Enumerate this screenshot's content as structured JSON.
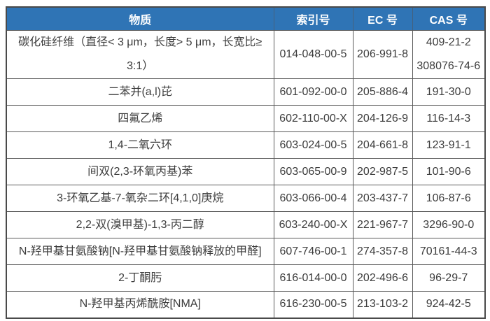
{
  "colors": {
    "header_background": "#2f74b5",
    "header_text": "#ffffff",
    "grid_border": "#5a5a5a",
    "outer_border": "#4a4a4a",
    "cell_text": "#3c3c3c",
    "page_background": "#ffffff"
  },
  "table": {
    "columns": [
      {
        "key": "substance",
        "label": "物质"
      },
      {
        "key": "index_no",
        "label": "索引号"
      },
      {
        "key": "ec_no",
        "label": "EC 号"
      },
      {
        "key": "cas_no",
        "label": "CAS 号"
      }
    ],
    "rows": [
      {
        "substance": "碳化硅纤维（直径< 3 μm，长度> 5 μm，长宽比≥ 3:1）",
        "index_no": "014-048-00-5",
        "ec_no": "206-991-8",
        "cas_no": [
          "409-21-2",
          "308076-74-6"
        ]
      },
      {
        "substance": "二苯并(a,l)芘",
        "index_no": "601-092-00-0",
        "ec_no": "205-886-4",
        "cas_no": "191-30-0"
      },
      {
        "substance": "四氟乙烯",
        "index_no": "602-110-00-X",
        "ec_no": "204-126-9",
        "cas_no": "116-14-3"
      },
      {
        "substance": "1,4-二氧六环",
        "index_no": "603-024-00-5",
        "ec_no": "204-661-8",
        "cas_no": "123-91-1"
      },
      {
        "substance": "间双(2,3-环氧丙基)苯",
        "index_no": "603-065-00-9",
        "ec_no": "202-987-5",
        "cas_no": "101-90-6"
      },
      {
        "substance": "3-环氧乙基-7-氧杂二环[4,1,0]庚烷",
        "index_no": "603-066-00-4",
        "ec_no": "203-437-7",
        "cas_no": "106-87-6"
      },
      {
        "substance": "2,2-双(溴甲基)-1,3-丙二醇",
        "index_no": "603-240-00-X",
        "ec_no": "221-967-7",
        "cas_no": "3296-90-0"
      },
      {
        "substance": "N-羟甲基甘氨酸钠[N-羟甲基甘氨酸钠释放的甲醛]",
        "index_no": "607-746-00-1",
        "ec_no": "274-357-8",
        "cas_no": "70161-44-3"
      },
      {
        "substance": "2-丁酮肟",
        "index_no": "616-014-00-0",
        "ec_no": "202-496-6",
        "cas_no": "96-29-7"
      },
      {
        "substance": "N-羟甲基丙烯酰胺[NMA]",
        "index_no": "616-230-00-5",
        "ec_no": "213-103-2",
        "cas_no": "924-42-5"
      }
    ]
  }
}
